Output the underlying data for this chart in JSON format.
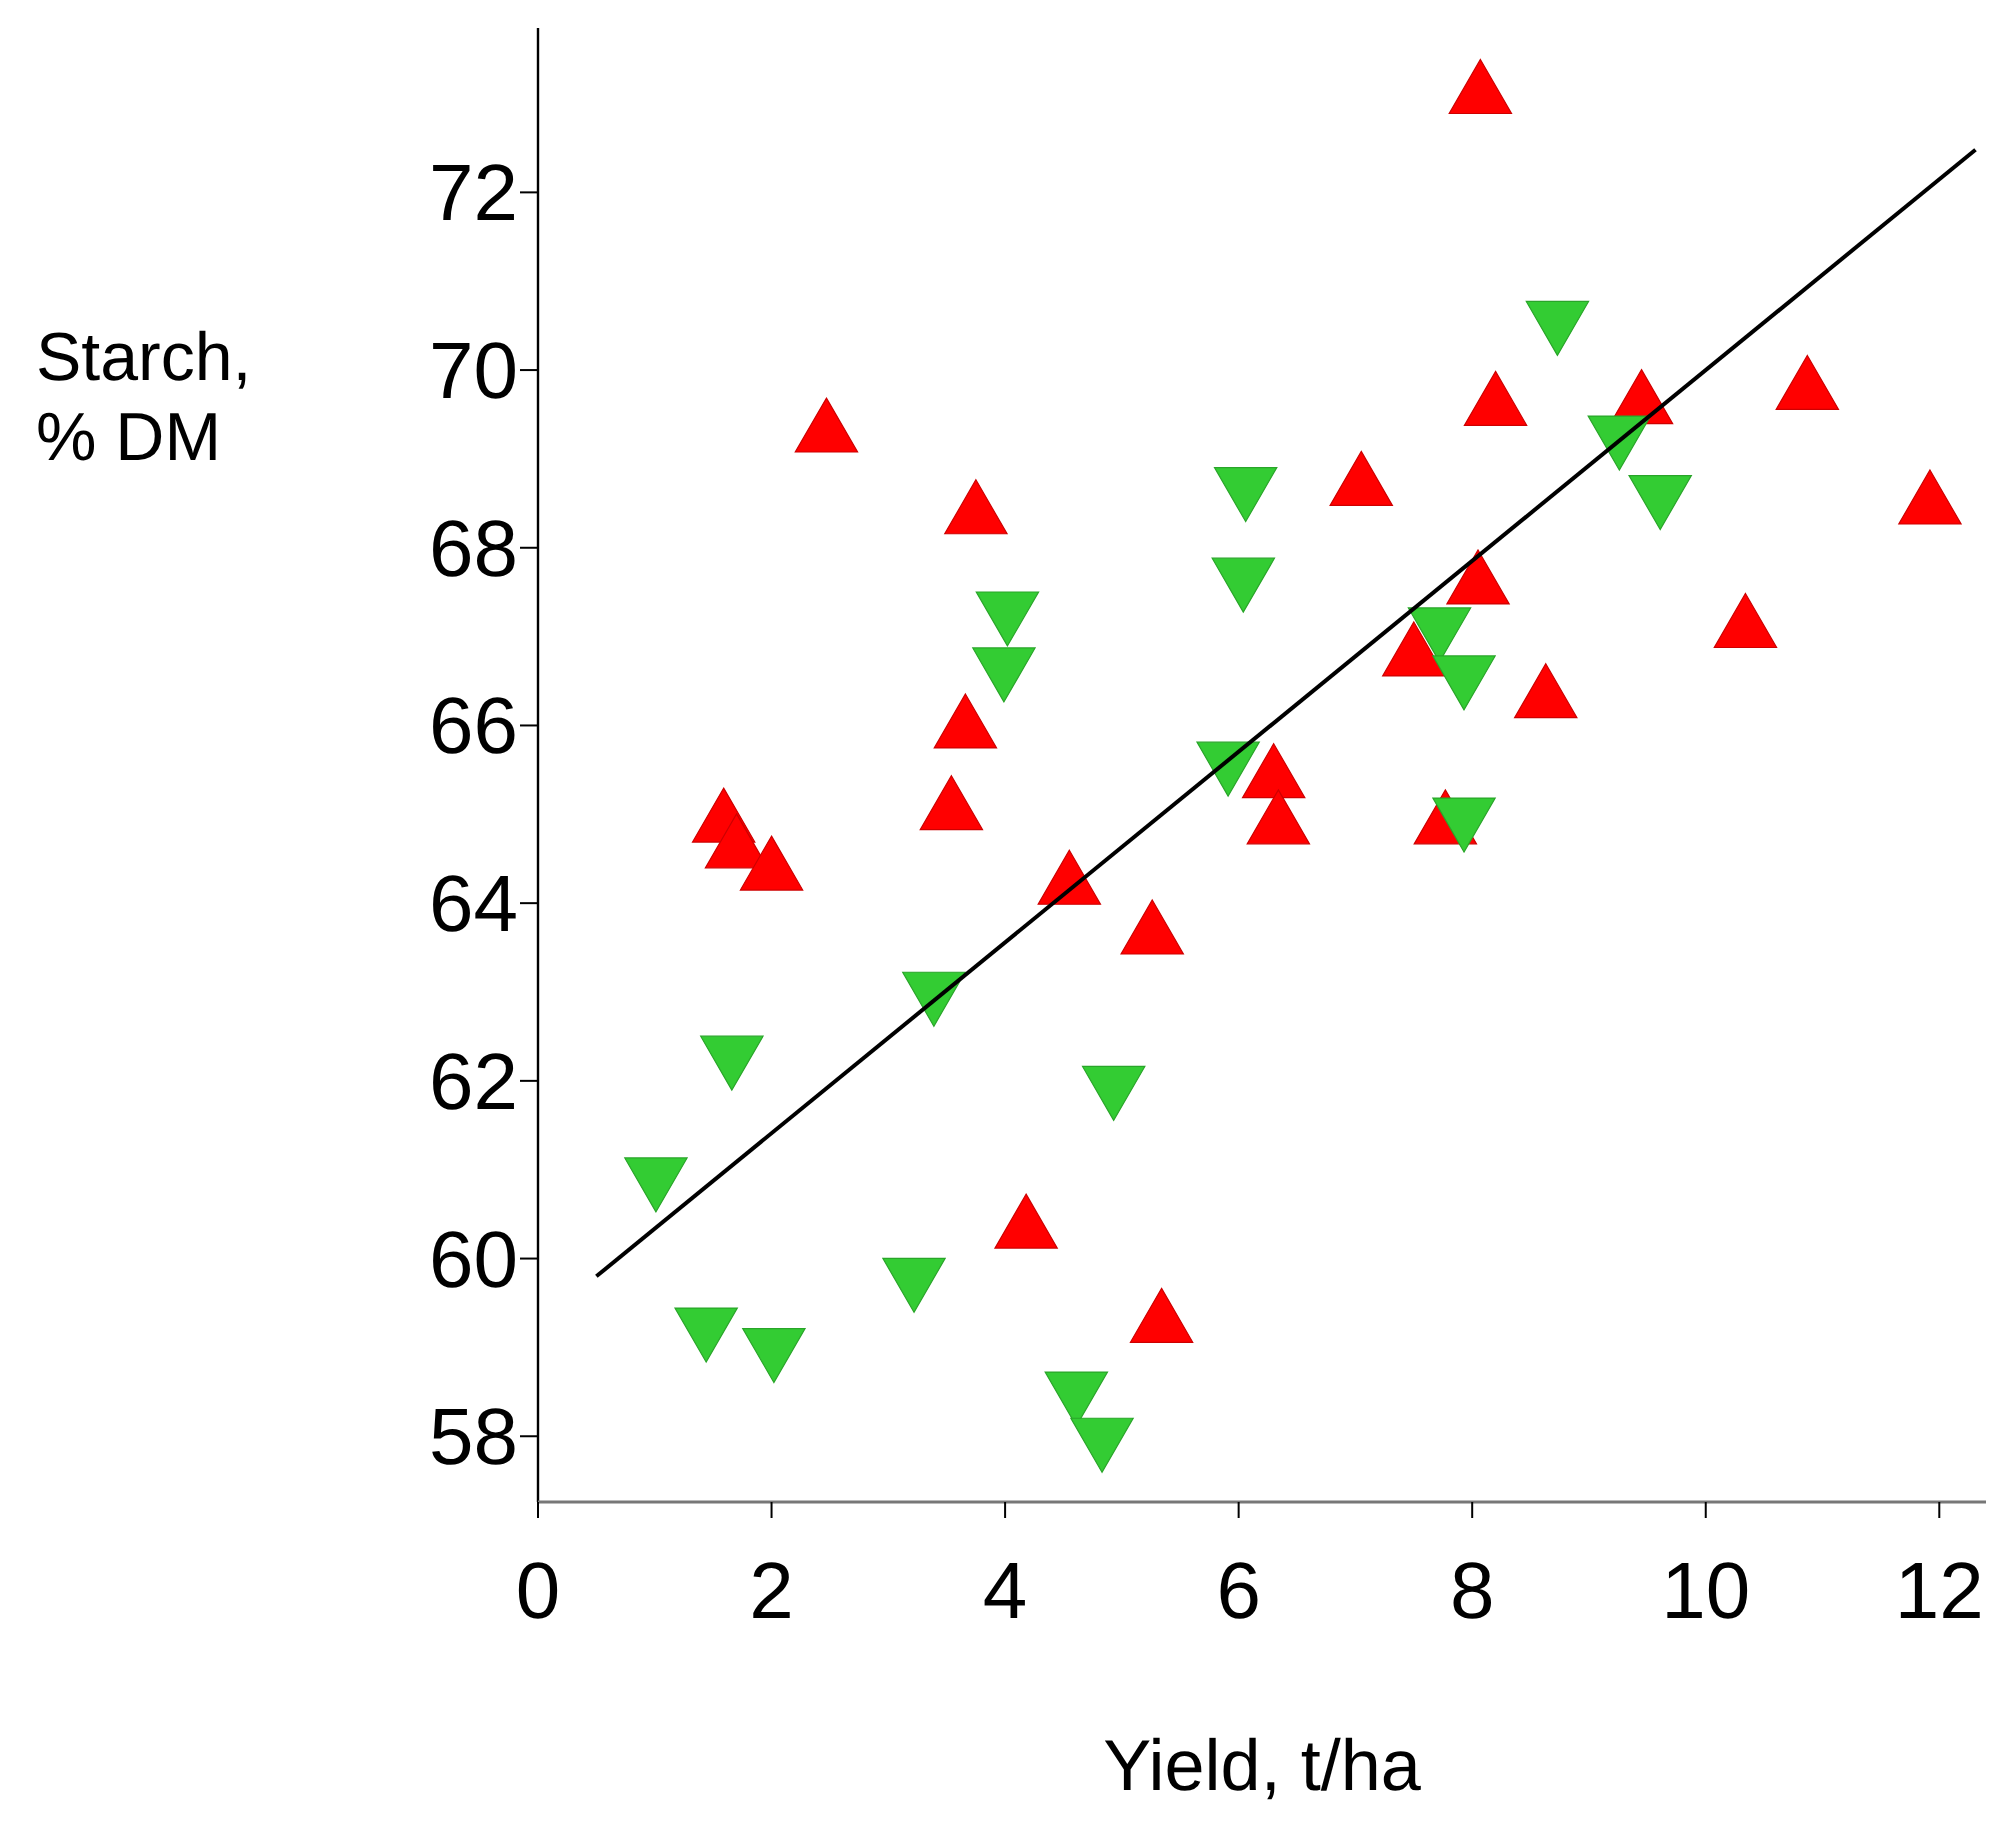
{
  "chart_data": {
    "type": "scatter",
    "xlabel": "Yield, t/ha",
    "ylabel": "Starch,\n% DM",
    "xlim": [
      0,
      12.4
    ],
    "ylim": [
      57.26,
      73.85
    ],
    "xticks": [
      0,
      2,
      4,
      6,
      8,
      10,
      12
    ],
    "yticks": [
      58,
      60,
      62,
      64,
      66,
      68,
      70,
      72
    ],
    "grid": false,
    "series": [
      {
        "marker": "triangle",
        "color": "#ff0000",
        "x": [
          2.47,
          3.75,
          3.66,
          3.54,
          1.59,
          1.7,
          2.0,
          4.55,
          5.26,
          4.18,
          5.34,
          8.07,
          8.2,
          9.45,
          10.87,
          11.92,
          7.05,
          8.05,
          7.5,
          10.34,
          8.63,
          6.3,
          6.34,
          7.77
        ],
        "values": [
          69.28,
          68.36,
          65.95,
          65.03,
          64.89,
          64.6,
          64.35,
          64.19,
          63.63,
          60.32,
          59.26,
          73.09,
          69.58,
          69.6,
          69.76,
          68.47,
          68.68,
          67.57,
          66.76,
          67.08,
          66.29,
          65.39,
          64.87,
          64.87
        ]
      },
      {
        "marker": "triangle-down",
        "color": "#33cc33",
        "x": [
          4.02,
          3.99,
          6.06,
          6.04,
          5.91,
          8.73,
          9.26,
          9.61,
          7.72,
          7.93,
          7.93,
          1.66,
          1.01,
          3.39,
          4.93,
          3.22,
          1.44,
          2.02,
          4.61,
          4.83
        ],
        "values": [
          67.3,
          66.67,
          68.7,
          67.68,
          65.61,
          70.57,
          69.28,
          68.61,
          67.12,
          66.58,
          64.98,
          62.3,
          60.93,
          63.02,
          61.96,
          59.8,
          59.24,
          59.01,
          58.52,
          58.0
        ]
      },
      {
        "type": "line",
        "marker": "none",
        "line_style": "solid",
        "color": "#000000",
        "x": [
          0.5,
          12.31
        ],
        "values": [
          59.8,
          72.48
        ]
      }
    ]
  }
}
